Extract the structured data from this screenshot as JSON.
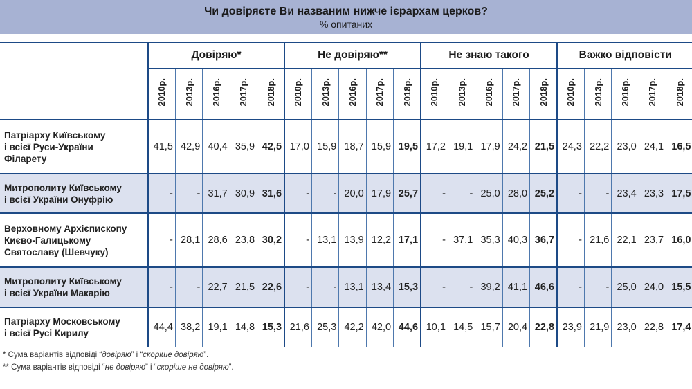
{
  "title": "Чи довіряєте Ви названим нижче ієрархам церков?",
  "subtitle": "% опитаних",
  "table": {
    "groups": [
      "Довіряю*",
      "Не довіряю**",
      "Не знаю такого",
      "Важко відповісти"
    ],
    "years": [
      "2010р.",
      "2013р.",
      "2016р.",
      "2017р.",
      "2018р."
    ],
    "rows": [
      {
        "label": [
          "Патріарху Київському",
          "і всієї Руси-України",
          "Філарету"
        ],
        "values": [
          "41,5",
          "42,9",
          "40,4",
          "35,9",
          "42,5",
          "17,0",
          "15,9",
          "18,7",
          "15,9",
          "19,5",
          "17,2",
          "19,1",
          "17,9",
          "24,2",
          "21,5",
          "24,3",
          "22,2",
          "23,0",
          "24,1",
          "16,5"
        ]
      },
      {
        "label": [
          "Митрополиту Київському",
          "і всієї України Онуфрію"
        ],
        "values": [
          "-",
          "-",
          "31,7",
          "30,9",
          "31,6",
          "-",
          "-",
          "20,0",
          "17,9",
          "25,7",
          "-",
          "-",
          "25,0",
          "28,0",
          "25,2",
          "-",
          "-",
          "23,4",
          "23,3",
          "17,5"
        ]
      },
      {
        "label": [
          "Верховному Архієпископу",
          "Києво-Галицькому",
          "Святославу (Шевчуку)"
        ],
        "values": [
          "-",
          "28,1",
          "28,6",
          "23,8",
          "30,2",
          "-",
          "13,1",
          "13,9",
          "12,2",
          "17,1",
          "-",
          "37,1",
          "35,3",
          "40,3",
          "36,7",
          "-",
          "21,6",
          "22,1",
          "23,7",
          "16,0"
        ]
      },
      {
        "label": [
          "Митрополиту Київському",
          "і всієї України Макарію"
        ],
        "values": [
          "-",
          "-",
          "22,7",
          "21,5",
          "22,6",
          "-",
          "-",
          "13,1",
          "13,4",
          "15,3",
          "-",
          "-",
          "39,2",
          "41,1",
          "46,6",
          "-",
          "-",
          "25,0",
          "24,0",
          "15,5"
        ]
      },
      {
        "label": [
          "Патріарху Московському",
          "і всієї Русі Кирилу"
        ],
        "values": [
          "44,4",
          "38,2",
          "19,1",
          "14,8",
          "15,3",
          "21,6",
          "25,3",
          "42,2",
          "42,0",
          "44,6",
          "10,1",
          "14,5",
          "15,7",
          "20,4",
          "22,8",
          "23,9",
          "21,9",
          "23,0",
          "22,8",
          "17,4"
        ]
      }
    ]
  },
  "footnotes": [
    {
      "prefix": "*",
      "text": " Сума варіантів відповіді “",
      "italic1": "довіряю",
      "mid": "” і “",
      "italic2": "скоріше довіряю",
      "end": "”."
    },
    {
      "prefix": "**",
      "text": " Сума варіантів відповіді “",
      "italic1": "не довіряю",
      "mid": "” і “",
      "italic2": "скоріше не довіряю",
      "end": "”."
    }
  ],
  "colors": {
    "title_band": "#a7b2d3",
    "alt_row": "#dce1ef",
    "border": "#1d4a86"
  }
}
